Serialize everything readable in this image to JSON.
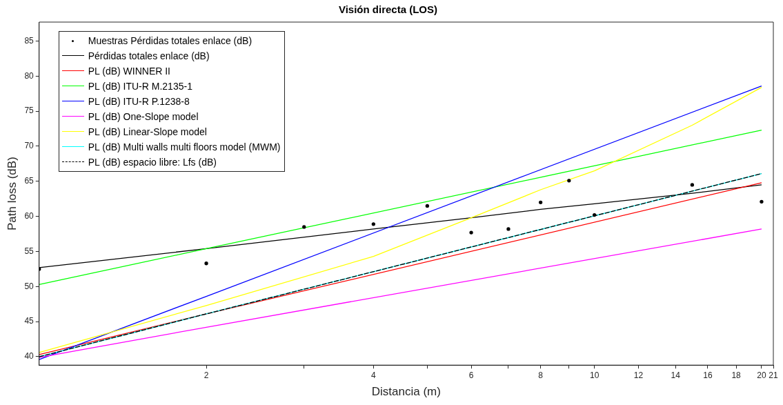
{
  "chart_data": {
    "type": "line",
    "title": "Visión directa (LOS)",
    "xlabel": "Distancia (m)",
    "ylabel": "Path loss (dB)",
    "log": "x",
    "xlim": [
      1,
      21
    ],
    "xticks": [
      2,
      {
        "value": 3,
        "label": null
      },
      4,
      {
        "value": 5,
        "label": null
      },
      6,
      {
        "value": 7,
        "label": null
      },
      8,
      {
        "value": 9,
        "label": null
      },
      10,
      12,
      14,
      16,
      18,
      20,
      21
    ],
    "ylim": [
      38.8,
      87.7
    ],
    "yticks": [
      40,
      45,
      50,
      55,
      60,
      65,
      70,
      75,
      80,
      85
    ],
    "legend": "top left",
    "series": [
      {
        "name": "Muestras Pérdidas totales enlace (dB)",
        "type": "scatter",
        "marker": "circle",
        "color": "#000000",
        "x": [
          1,
          2,
          3,
          4,
          5,
          6,
          7,
          8,
          9,
          10,
          15,
          20
        ],
        "values": [
          52.5,
          53.3,
          58.5,
          58.9,
          61.5,
          57.7,
          58.2,
          62,
          65.1,
          60.2,
          64.5,
          62.1
        ]
      },
      {
        "name": "Pérdidas totales enlace (dB)",
        "color": "#000000",
        "x": [
          1,
          2,
          4,
          6,
          8,
          10,
          15,
          20
        ],
        "values": [
          52.7,
          55.4,
          58.2,
          59.8,
          61,
          61.8,
          63.3,
          64.5
        ]
      },
      {
        "name": "PL (dB) WINNER II",
        "color": "#ff0000",
        "x": [
          1,
          2,
          20
        ],
        "values": [
          40.3,
          46.1,
          64.8
        ]
      },
      {
        "name": "PL (dB) ITU-R M.2135-1",
        "color": "#00ff00",
        "x": [
          1,
          2,
          20
        ],
        "values": [
          50.3,
          55.4,
          72.3
        ]
      },
      {
        "name": "PL (dB) ITU-R P.1238-8",
        "color": "#0000ff",
        "x": [
          1,
          2,
          20
        ],
        "values": [
          39.6,
          48.6,
          78.6
        ]
      },
      {
        "name": "PL (dB) One-Slope model",
        "color": "#ff00ff",
        "x": [
          1,
          2,
          20
        ],
        "values": [
          39.9,
          44.2,
          58.2
        ]
      },
      {
        "name": "PL (dB) Linear-Slope model",
        "color": "#ffff00",
        "x": [
          1,
          2,
          4,
          6,
          8,
          10,
          15,
          20
        ],
        "values": [
          40.6,
          47.3,
          54.3,
          59.8,
          63.8,
          66.5,
          73,
          78.4
        ]
      },
      {
        "name": "PL (dB) Multi walls multi floors model (MWM)",
        "color": "#00ffff",
        "x": [
          1,
          2,
          20
        ],
        "values": [
          40,
          46.1,
          66.1
        ]
      },
      {
        "name": "PL (dB) espacio libre: Lfs (dB)",
        "color": "#000000",
        "line_style": "dashed",
        "x": [
          1,
          2,
          20
        ],
        "values": [
          40,
          46.1,
          66.1
        ]
      }
    ]
  }
}
